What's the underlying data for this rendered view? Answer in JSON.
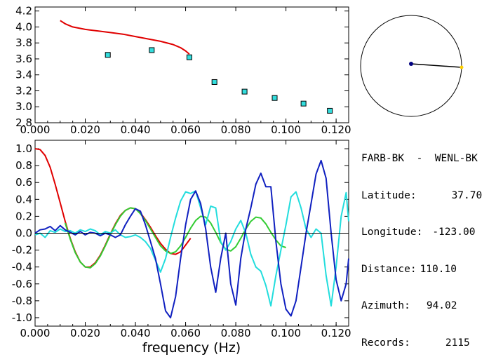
{
  "info": {
    "station_pair": "FARB-BK  -  WENL-BK",
    "latitude_label": "Latitude:",
    "latitude_value": "37.70",
    "longitude_label": "Longitude:",
    "longitude_value": "-123.00",
    "distance_label": "Distance:",
    "distance_value": "110.10",
    "azimuth_label": "Azimuth:",
    "azimuth_value": "94.02",
    "records_label": "Records:",
    "records_value": "2115"
  },
  "colors": {
    "red": "#e00000",
    "cyan": "#22dddd",
    "blue": "#1020c0",
    "green": "#33cc33",
    "marker_fill": "#33dddd",
    "dot_blue": "#000080",
    "dot_yellow": "#ffd000"
  },
  "chart_data": [
    {
      "type": "line",
      "title": "",
      "xlabel": "",
      "ylabel": "",
      "xlim": [
        0.0,
        0.125
      ],
      "ylim": [
        2.8,
        4.25
      ],
      "xticks": [
        "0.000",
        "0.020",
        "0.040",
        "0.060",
        "0.080",
        "0.100",
        "0.120"
      ],
      "yticks": [
        "2.8",
        "3.0",
        "3.2",
        "3.4",
        "3.6",
        "3.8",
        "4.0",
        "4.2"
      ],
      "series": [
        {
          "style": "line",
          "color": "red",
          "x": [
            0.01,
            0.012,
            0.015,
            0.02,
            0.025,
            0.03,
            0.035,
            0.04,
            0.045,
            0.05,
            0.055,
            0.058,
            0.06,
            0.0615
          ],
          "y": [
            4.08,
            4.04,
            4.0,
            3.97,
            3.95,
            3.93,
            3.91,
            3.88,
            3.85,
            3.82,
            3.78,
            3.74,
            3.7,
            3.66
          ]
        },
        {
          "style": "markers",
          "color": "cyan",
          "x": [
            0.029,
            0.0465,
            0.0615,
            0.0715,
            0.0835,
            0.0955,
            0.107,
            0.1175
          ],
          "y": [
            3.65,
            3.71,
            3.62,
            3.31,
            3.19,
            3.11,
            3.04,
            2.95
          ]
        }
      ]
    },
    {
      "type": "line",
      "title": "",
      "xlabel": "frequency (Hz)",
      "ylabel": "",
      "xlim": [
        0.0,
        0.125
      ],
      "ylim": [
        -1.1,
        1.1
      ],
      "xticks": [
        "0.000",
        "0.020",
        "0.040",
        "0.060",
        "0.080",
        "0.100",
        "0.120"
      ],
      "yticks": [
        "-1.0",
        "-0.8",
        "-0.6",
        "-0.4",
        "-0.2",
        "0.0",
        "0.2",
        "0.4",
        "0.6",
        "0.8",
        "1.0"
      ],
      "series": [
        {
          "color": "red",
          "x": [
            0.0,
            0.002,
            0.004,
            0.006,
            0.008,
            0.01,
            0.012,
            0.014,
            0.016,
            0.018,
            0.02,
            0.022,
            0.024,
            0.026,
            0.028,
            0.03,
            0.032,
            0.034,
            0.036,
            0.038,
            0.04,
            0.042,
            0.044,
            0.046,
            0.048,
            0.05,
            0.052,
            0.054,
            0.056,
            0.058,
            0.06,
            0.062
          ],
          "y": [
            1.0,
            0.99,
            0.92,
            0.78,
            0.58,
            0.36,
            0.14,
            -0.06,
            -0.22,
            -0.34,
            -0.4,
            -0.4,
            -0.35,
            -0.26,
            -0.14,
            -0.01,
            0.11,
            0.21,
            0.27,
            0.3,
            0.29,
            0.24,
            0.16,
            0.07,
            -0.03,
            -0.12,
            -0.19,
            -0.24,
            -0.25,
            -0.22,
            -0.14,
            -0.06
          ]
        },
        {
          "color": "green",
          "x": [
            0.012,
            0.014,
            0.016,
            0.018,
            0.02,
            0.022,
            0.024,
            0.026,
            0.028,
            0.03,
            0.032,
            0.034,
            0.036,
            0.038,
            0.04,
            0.042,
            0.044,
            0.046,
            0.048,
            0.05,
            0.052,
            0.054,
            0.056,
            0.058,
            0.06,
            0.062,
            0.064,
            0.066,
            0.068,
            0.07,
            0.072,
            0.074,
            0.076,
            0.078,
            0.08,
            0.082,
            0.084,
            0.086,
            0.088,
            0.09,
            0.092,
            0.094,
            0.096,
            0.098,
            0.1
          ],
          "y": [
            0.12,
            -0.07,
            -0.23,
            -0.34,
            -0.4,
            -0.41,
            -0.36,
            -0.27,
            -0.15,
            -0.02,
            0.1,
            0.2,
            0.27,
            0.3,
            0.29,
            0.23,
            0.15,
            0.05,
            -0.05,
            -0.15,
            -0.21,
            -0.24,
            -0.22,
            -0.15,
            -0.05,
            0.06,
            0.15,
            0.2,
            0.19,
            0.12,
            0.01,
            -0.11,
            -0.19,
            -0.21,
            -0.16,
            -0.06,
            0.05,
            0.14,
            0.19,
            0.18,
            0.11,
            0.01,
            -0.08,
            -0.15,
            -0.17
          ]
        },
        {
          "color": "cyan",
          "x": [
            0.0,
            0.002,
            0.004,
            0.006,
            0.008,
            0.01,
            0.012,
            0.014,
            0.016,
            0.018,
            0.02,
            0.022,
            0.024,
            0.026,
            0.028,
            0.03,
            0.032,
            0.034,
            0.036,
            0.038,
            0.04,
            0.042,
            0.044,
            0.046,
            0.048,
            0.05,
            0.052,
            0.054,
            0.056,
            0.058,
            0.06,
            0.062,
            0.064,
            0.066,
            0.068,
            0.07,
            0.072,
            0.074,
            0.076,
            0.078,
            0.08,
            0.082,
            0.084,
            0.086,
            0.088,
            0.09,
            0.092,
            0.094,
            0.096,
            0.098,
            0.1,
            0.102,
            0.104,
            0.106,
            0.108,
            0.11,
            0.112,
            0.114,
            0.116,
            0.118,
            0.12,
            0.122,
            0.124,
            0.125
          ],
          "y": [
            -0.02,
            0.0,
            -0.05,
            0.03,
            0.01,
            0.05,
            0.02,
            0.03,
            0.0,
            0.04,
            0.02,
            0.05,
            0.03,
            -0.02,
            0.02,
            0.0,
            0.04,
            -0.02,
            -0.05,
            -0.04,
            -0.02,
            -0.05,
            -0.1,
            -0.18,
            -0.32,
            -0.46,
            -0.3,
            -0.05,
            0.18,
            0.38,
            0.49,
            0.47,
            0.5,
            0.3,
            0.1,
            0.32,
            0.3,
            -0.1,
            -0.2,
            -0.1,
            0.05,
            0.15,
            0.0,
            -0.25,
            -0.4,
            -0.45,
            -0.62,
            -0.86,
            -0.5,
            -0.2,
            0.1,
            0.43,
            0.49,
            0.3,
            0.05,
            -0.05,
            0.05,
            0.0,
            -0.5,
            -0.86,
            -0.4,
            0.2,
            0.48,
            0.14
          ]
        },
        {
          "color": "blue",
          "x": [
            0.0,
            0.002,
            0.004,
            0.006,
            0.008,
            0.01,
            0.012,
            0.014,
            0.016,
            0.018,
            0.02,
            0.022,
            0.024,
            0.026,
            0.028,
            0.03,
            0.032,
            0.034,
            0.036,
            0.038,
            0.04,
            0.042,
            0.044,
            0.046,
            0.048,
            0.05,
            0.052,
            0.054,
            0.056,
            0.058,
            0.06,
            0.062,
            0.064,
            0.066,
            0.068,
            0.07,
            0.072,
            0.074,
            0.076,
            0.078,
            0.08,
            0.082,
            0.084,
            0.086,
            0.088,
            0.09,
            0.092,
            0.094,
            0.096,
            0.098,
            0.1,
            0.102,
            0.104,
            0.106,
            0.108,
            0.11,
            0.112,
            0.114,
            0.116,
            0.118,
            0.12,
            0.122,
            0.124,
            0.125
          ],
          "y": [
            0.0,
            0.04,
            0.05,
            0.08,
            0.03,
            0.09,
            0.04,
            0.01,
            -0.02,
            0.02,
            -0.02,
            0.01,
            0.0,
            -0.03,
            0.0,
            -0.02,
            -0.05,
            -0.02,
            0.1,
            0.2,
            0.29,
            0.26,
            0.1,
            -0.1,
            -0.3,
            -0.6,
            -0.92,
            -1.0,
            -0.75,
            -0.3,
            0.1,
            0.4,
            0.5,
            0.35,
            0.05,
            -0.4,
            -0.7,
            -0.3,
            0.0,
            -0.6,
            -0.85,
            -0.3,
            0.05,
            0.3,
            0.58,
            0.71,
            0.55,
            0.55,
            -0.1,
            -0.6,
            -0.9,
            -0.98,
            -0.8,
            -0.4,
            0.0,
            0.35,
            0.7,
            0.86,
            0.65,
            0.0,
            -0.55,
            -0.8,
            -0.6,
            -0.3
          ]
        },
        {
          "color": "black",
          "x": [
            0.0,
            0.125
          ],
          "y": [
            0.0,
            0.0
          ]
        }
      ]
    }
  ]
}
